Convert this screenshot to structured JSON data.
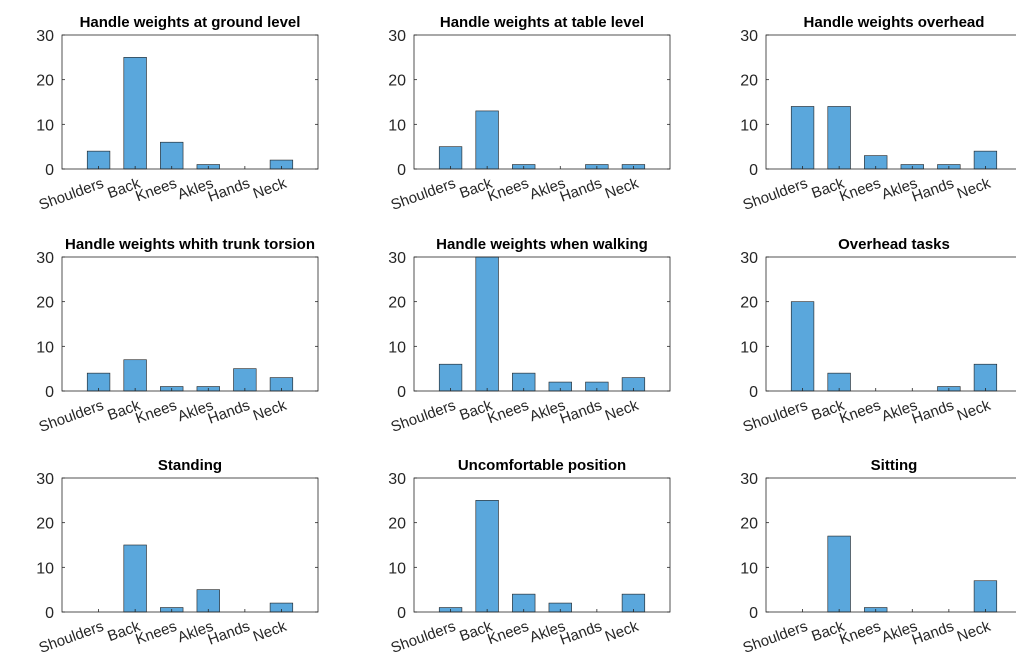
{
  "chart_data": [
    {
      "type": "bar",
      "title": "Handle weights at ground level",
      "categories": [
        "Shoulders",
        "Back",
        "Knees",
        "Akles",
        "Hands",
        "Neck"
      ],
      "values": [
        4,
        25,
        6,
        1,
        0,
        2
      ],
      "ylim": [
        0,
        30
      ],
      "yticks": [
        0,
        10,
        20,
        30
      ],
      "bar_color": "#5aa7dc"
    },
    {
      "type": "bar",
      "title": "Handle weights at table level",
      "categories": [
        "Shoulders",
        "Back",
        "Knees",
        "Akles",
        "Hands",
        "Neck"
      ],
      "values": [
        5,
        13,
        1,
        0,
        1,
        1
      ],
      "ylim": [
        0,
        30
      ],
      "yticks": [
        0,
        10,
        20,
        30
      ],
      "bar_color": "#5aa7dc"
    },
    {
      "type": "bar",
      "title": "Handle weights overhead",
      "categories": [
        "Shoulders",
        "Back",
        "Knees",
        "Akles",
        "Hands",
        "Neck"
      ],
      "values": [
        14,
        14,
        3,
        1,
        1,
        4
      ],
      "ylim": [
        0,
        30
      ],
      "yticks": [
        0,
        10,
        20,
        30
      ],
      "bar_color": "#5aa7dc"
    },
    {
      "type": "bar",
      "title": "Handle weights whith trunk torsion",
      "categories": [
        "Shoulders",
        "Back",
        "Knees",
        "Akles",
        "Hands",
        "Neck"
      ],
      "values": [
        4,
        7,
        1,
        1,
        5,
        3
      ],
      "ylim": [
        0,
        30
      ],
      "yticks": [
        0,
        10,
        20,
        30
      ],
      "bar_color": "#5aa7dc"
    },
    {
      "type": "bar",
      "title": "Handle weights when walking",
      "categories": [
        "Shoulders",
        "Back",
        "Knees",
        "Akles",
        "Hands",
        "Neck"
      ],
      "values": [
        6,
        30,
        4,
        2,
        2,
        3
      ],
      "ylim": [
        0,
        30
      ],
      "yticks": [
        0,
        10,
        20,
        30
      ],
      "bar_color": "#5aa7dc"
    },
    {
      "type": "bar",
      "title": "Overhead tasks",
      "categories": [
        "Shoulders",
        "Back",
        "Knees",
        "Akles",
        "Hands",
        "Neck"
      ],
      "values": [
        20,
        4,
        0,
        0,
        1,
        6
      ],
      "ylim": [
        0,
        30
      ],
      "yticks": [
        0,
        10,
        20,
        30
      ],
      "bar_color": "#5aa7dc"
    },
    {
      "type": "bar",
      "title": "Standing",
      "categories": [
        "Shoulders",
        "Back",
        "Knees",
        "Akles",
        "Hands",
        "Neck"
      ],
      "values": [
        0,
        15,
        1,
        5,
        0,
        2
      ],
      "ylim": [
        0,
        30
      ],
      "yticks": [
        0,
        10,
        20,
        30
      ],
      "bar_color": "#5aa7dc"
    },
    {
      "type": "bar",
      "title": "Uncomfortable position",
      "categories": [
        "Shoulders",
        "Back",
        "Knees",
        "Akles",
        "Hands",
        "Neck"
      ],
      "values": [
        1,
        25,
        4,
        2,
        0,
        4
      ],
      "ylim": [
        0,
        30
      ],
      "yticks": [
        0,
        10,
        20,
        30
      ],
      "bar_color": "#5aa7dc"
    },
    {
      "type": "bar",
      "title": "Sitting",
      "categories": [
        "Shoulders",
        "Back",
        "Knees",
        "Akles",
        "Hands",
        "Neck"
      ],
      "values": [
        0,
        17,
        1,
        0,
        0,
        7
      ],
      "ylim": [
        0,
        30
      ],
      "yticks": [
        0,
        10,
        20,
        30
      ],
      "bar_color": "#5aa7dc"
    }
  ]
}
